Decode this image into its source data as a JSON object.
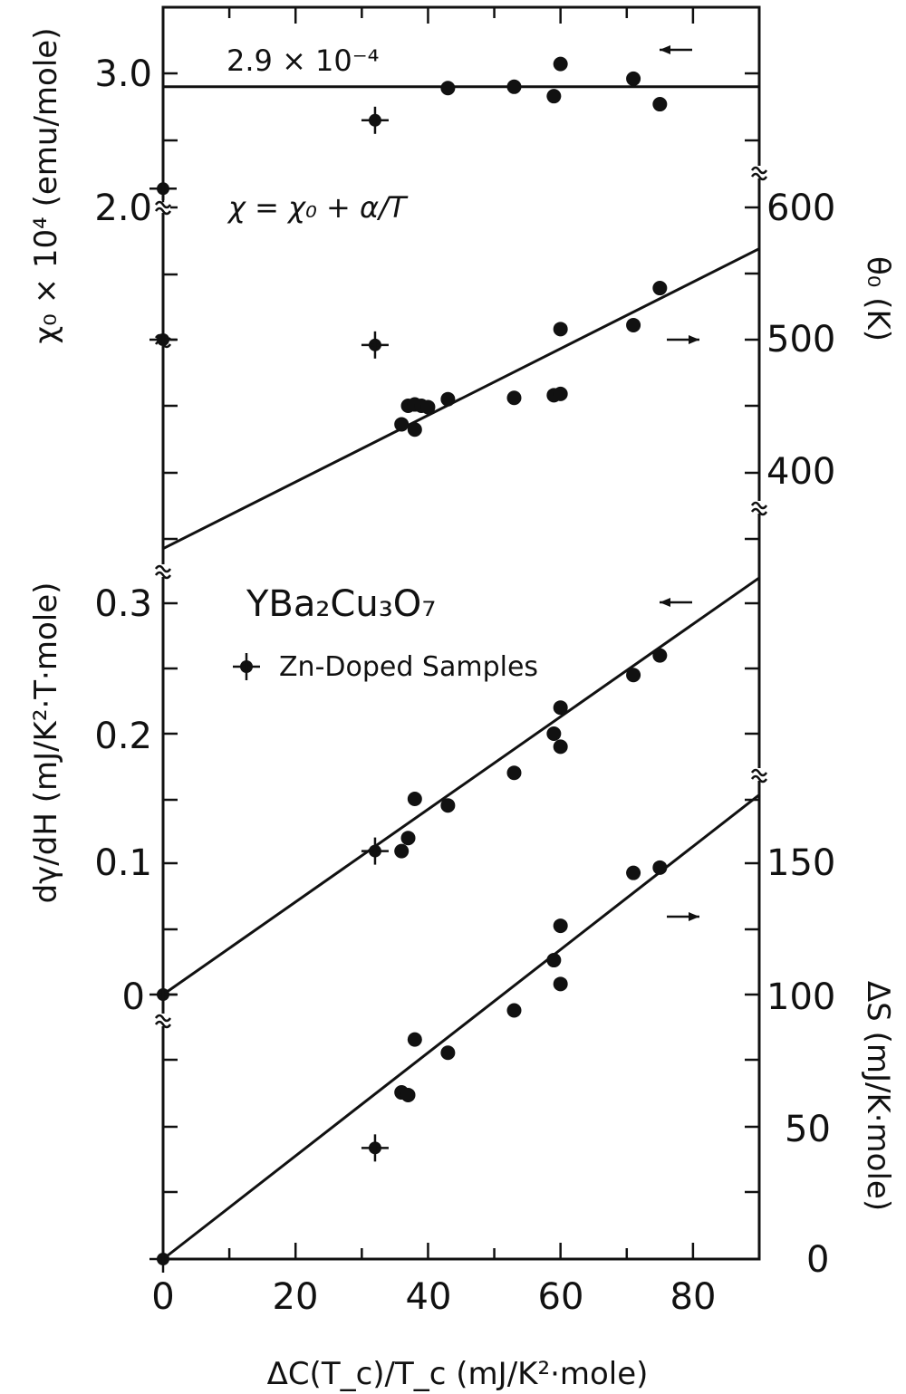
{
  "chart_data": {
    "type": "scatter",
    "x_axis": {
      "label": "ΔC(T_c)/T_c  (mJ/K²·mole)",
      "range": [
        0,
        90
      ],
      "ticks": [
        "0",
        "20",
        "40",
        "60",
        "80"
      ]
    },
    "panels": [
      {
        "id": "chi0",
        "left_axis_label": "χ₀ × 10⁴ (emu/mole)",
        "left_ticks": [
          "3.0",
          "2.0"
        ],
        "range": [
          1.0,
          3.5
        ],
        "arrow": "left",
        "annotation": "2.9 × 10⁻⁴",
        "equation": "χ = χ₀ + α/T",
        "fit": {
          "slope": 0,
          "intercept": 2.9
        },
        "points": [
          {
            "x": 43,
            "y": 2.89
          },
          {
            "x": 53,
            "y": 2.9
          },
          {
            "x": 59,
            "y": 2.83
          },
          {
            "x": 60,
            "y": 3.07
          },
          {
            "x": 71,
            "y": 2.96
          },
          {
            "x": 75,
            "y": 2.77
          }
        ],
        "zn_points": [
          {
            "x": 0,
            "y": 2.14
          },
          {
            "x": 32,
            "y": 2.65
          }
        ]
      },
      {
        "id": "theta",
        "right_axis_label": "θ₀ (K)",
        "right_ticks": [
          "600",
          "500",
          "400"
        ],
        "range": [
          350,
          660
        ],
        "arrow": "right",
        "fit": {
          "slope": 2.52,
          "intercept": 342
        },
        "points": [
          {
            "x": 36,
            "y": 436
          },
          {
            "x": 37,
            "y": 450
          },
          {
            "x": 38,
            "y": 451
          },
          {
            "x": 38,
            "y": 432
          },
          {
            "x": 39,
            "y": 450
          },
          {
            "x": 40,
            "y": 449
          },
          {
            "x": 43,
            "y": 455
          },
          {
            "x": 53,
            "y": 456
          },
          {
            "x": 59,
            "y": 458
          },
          {
            "x": 60,
            "y": 459
          },
          {
            "x": 60,
            "y": 508
          },
          {
            "x": 71,
            "y": 511
          },
          {
            "x": 75,
            "y": 539
          }
        ],
        "zn_points": [
          {
            "x": 0,
            "y": 500
          },
          {
            "x": 32,
            "y": 496
          }
        ]
      },
      {
        "id": "dgamma",
        "left_axis_label": "dγ/dH  (mJ/K²·T·mole)",
        "left_ticks": [
          "0.3",
          "0.2",
          "0.1",
          "0"
        ],
        "range": [
          0,
          0.34
        ],
        "arrow": "left",
        "compound": "YBa₂Cu₃O₇",
        "legend": "Zn-Doped Samples",
        "fit": {
          "slope": 0.00355,
          "intercept": 0
        },
        "points": [
          {
            "x": 36,
            "y": 0.11
          },
          {
            "x": 37,
            "y": 0.12
          },
          {
            "x": 38,
            "y": 0.15
          },
          {
            "x": 43,
            "y": 0.145
          },
          {
            "x": 53,
            "y": 0.17
          },
          {
            "x": 59,
            "y": 0.2
          },
          {
            "x": 60,
            "y": 0.22
          },
          {
            "x": 60,
            "y": 0.19
          },
          {
            "x": 71,
            "y": 0.245
          },
          {
            "x": 75,
            "y": 0.26
          }
        ],
        "zn_points": [
          {
            "x": 0,
            "y": 0
          },
          {
            "x": 32,
            "y": 0.11
          }
        ]
      },
      {
        "id": "deltaS",
        "right_axis_label": "ΔS (mJ/K·mole)",
        "right_ticks": [
          "150",
          "100",
          "50",
          "0"
        ],
        "range": [
          0,
          180
        ],
        "arrow": "right",
        "fit": {
          "slope": 1.95,
          "intercept": 0
        },
        "points": [
          {
            "x": 36,
            "y": 63
          },
          {
            "x": 37,
            "y": 62
          },
          {
            "x": 38,
            "y": 83
          },
          {
            "x": 43,
            "y": 78
          },
          {
            "x": 53,
            "y": 94
          },
          {
            "x": 59,
            "y": 113
          },
          {
            "x": 60,
            "y": 126
          },
          {
            "x": 60,
            "y": 104
          },
          {
            "x": 71,
            "y": 146
          },
          {
            "x": 75,
            "y": 148
          }
        ],
        "zn_points": [
          {
            "x": 0,
            "y": 0
          },
          {
            "x": 32,
            "y": 42
          }
        ]
      }
    ]
  }
}
